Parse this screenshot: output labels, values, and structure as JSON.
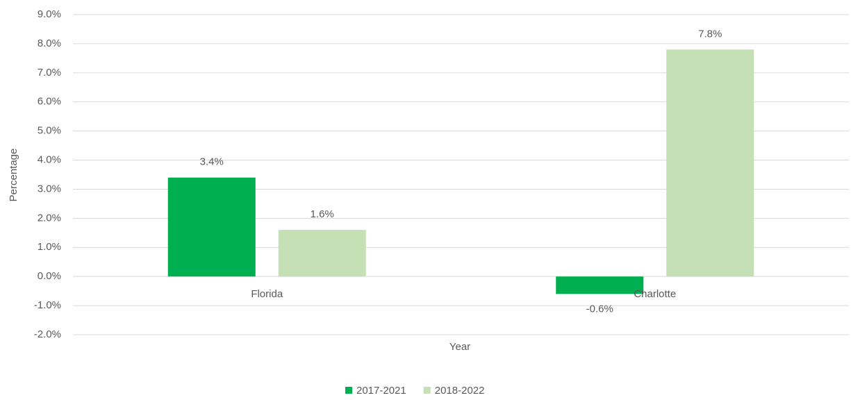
{
  "chart_data": {
    "type": "bar",
    "categories": [
      "Florida",
      "Charlotte"
    ],
    "series": [
      {
        "name": "2017-2021",
        "color": "#00b050",
        "values": [
          3.4,
          -0.6
        ],
        "value_labels": [
          "3.4%",
          "-0.6%"
        ]
      },
      {
        "name": "2018-2022",
        "color": "#c5e0b4",
        "values": [
          1.6,
          7.8
        ],
        "value_labels": [
          "1.6%",
          "7.8%"
        ]
      }
    ],
    "x_label": "Year",
    "y_label": "Percentage",
    "ylim": [
      -2,
      9
    ],
    "yticks": [
      {
        "value": -2,
        "label": "-2.0%"
      },
      {
        "value": -1,
        "label": "-1.0%"
      },
      {
        "value": 0,
        "label": "0.0%"
      },
      {
        "value": 1,
        "label": "1.0%"
      },
      {
        "value": 2,
        "label": "2.0%"
      },
      {
        "value": 3,
        "label": "3.0%"
      },
      {
        "value": 4,
        "label": "4.0%"
      },
      {
        "value": 5,
        "label": "5.0%"
      },
      {
        "value": 6,
        "label": "6.0%"
      },
      {
        "value": 7,
        "label": "7.0%"
      },
      {
        "value": 8,
        "label": "8.0%"
      },
      {
        "value": 9,
        "label": "9.0%"
      }
    ],
    "grid": true,
    "legend": "bottom"
  }
}
